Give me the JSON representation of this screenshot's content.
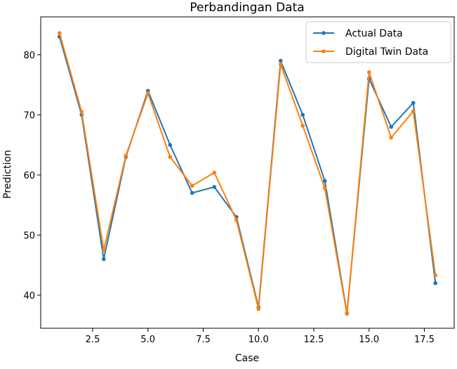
{
  "chart_data": {
    "type": "line",
    "title": "Perbandingan Data",
    "xlabel": "Case",
    "ylabel": "Prediction",
    "xlim": [
      0.15,
      18.85
    ],
    "ylim": [
      34.5,
      86.3
    ],
    "x_ticks": [
      2.5,
      5.0,
      7.5,
      10.0,
      12.5,
      15.0,
      17.5
    ],
    "x_tick_labels": [
      "2.5",
      "5.0",
      "7.5",
      "10.0",
      "12.5",
      "15.0",
      "17.5"
    ],
    "y_ticks": [
      40,
      50,
      60,
      70,
      80
    ],
    "y_tick_labels": [
      "40",
      "50",
      "60",
      "70",
      "80"
    ],
    "grid": false,
    "legend_position": "top-right",
    "x": [
      1,
      2,
      3,
      4,
      5,
      6,
      7,
      8,
      9,
      10,
      11,
      12,
      13,
      14,
      15,
      16,
      17,
      18
    ],
    "series": [
      {
        "name": "Actual Data",
        "color": "#1f77b4",
        "values": [
          83,
          70,
          46,
          63,
          74,
          65,
          57,
          58,
          53,
          38,
          79,
          70,
          59,
          37,
          76,
          68,
          72,
          42
        ]
      },
      {
        "name": "Digital Twin Data",
        "color": "#ff7f0e",
        "values": [
          83.6,
          70.5,
          47.5,
          63.2,
          73.6,
          63,
          58.2,
          60.4,
          52.5,
          37.7,
          78.4,
          68.2,
          57.8,
          36.9,
          77.1,
          66.2,
          70.6,
          43.3
        ]
      }
    ]
  }
}
